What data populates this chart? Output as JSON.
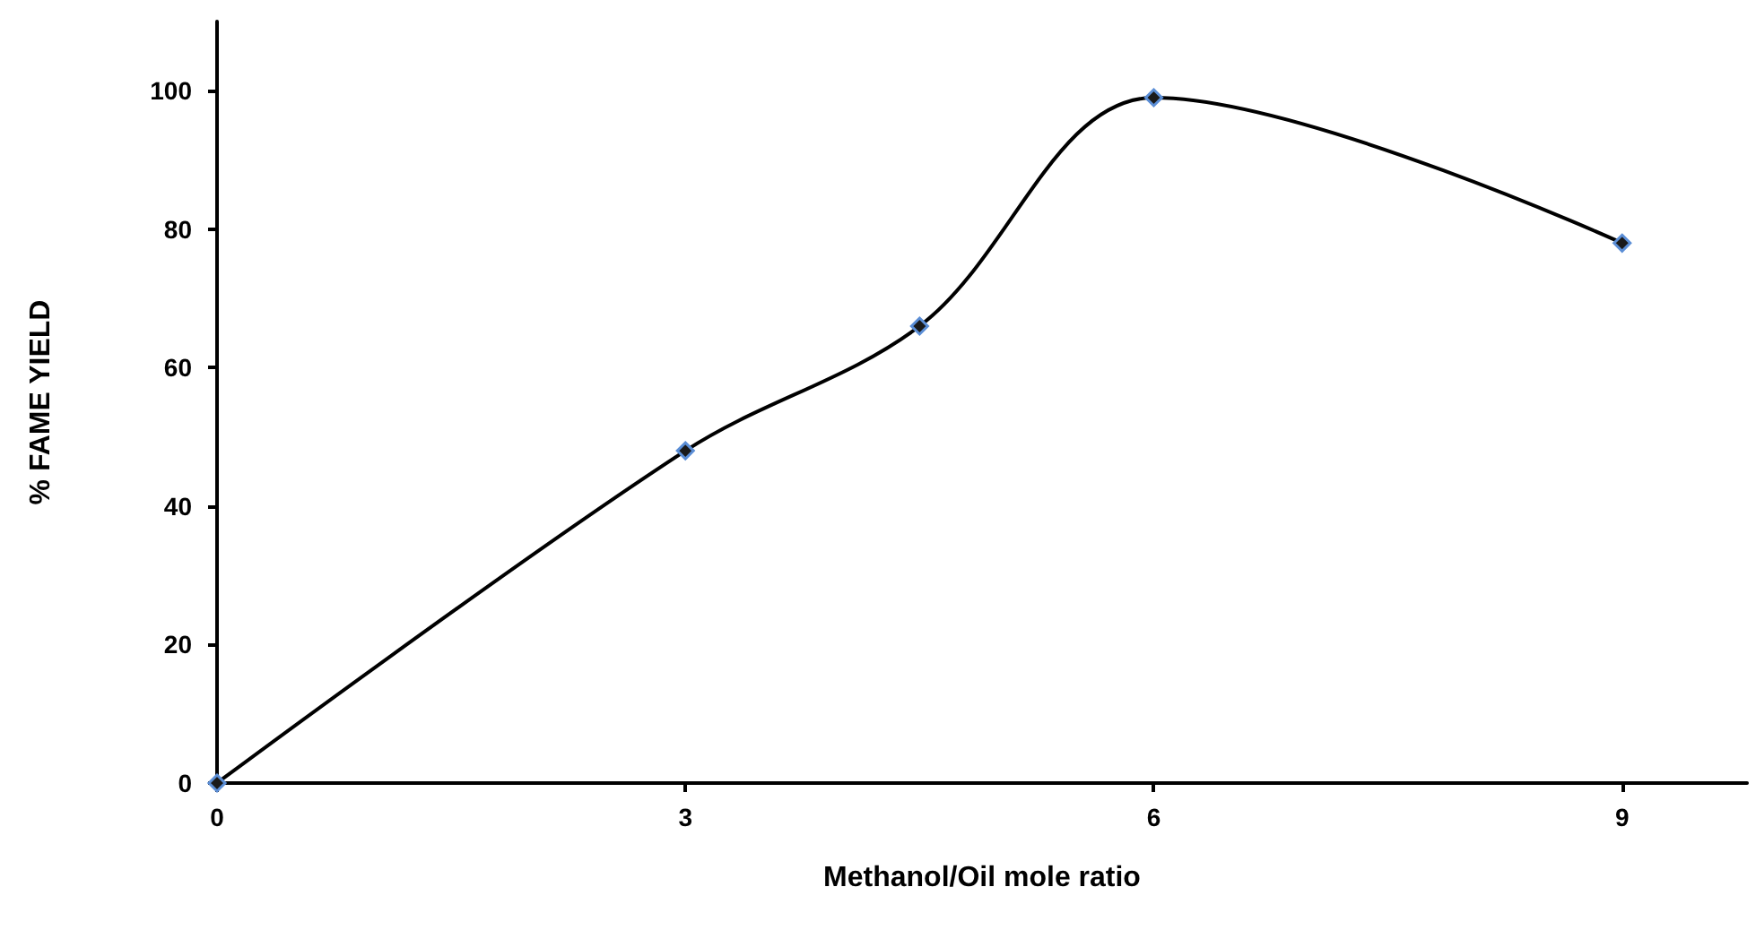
{
  "chart_data": {
    "type": "line",
    "xlabel": "Methanol/Oil mole ratio",
    "ylabel": "% FAME YIELD",
    "x": [
      0,
      3,
      4.5,
      6,
      9
    ],
    "series": [
      {
        "color": "#000000",
        "values": [
          0,
          48,
          66,
          99,
          78
        ]
      }
    ],
    "xlim": [
      0,
      9.8
    ],
    "xticks": [
      0,
      3,
      6,
      9
    ],
    "ylim": [
      0,
      110
    ],
    "yticks": [
      0,
      20,
      40,
      60,
      80,
      100
    ],
    "grid": false,
    "marker": "diamond",
    "line_style": "solid"
  }
}
